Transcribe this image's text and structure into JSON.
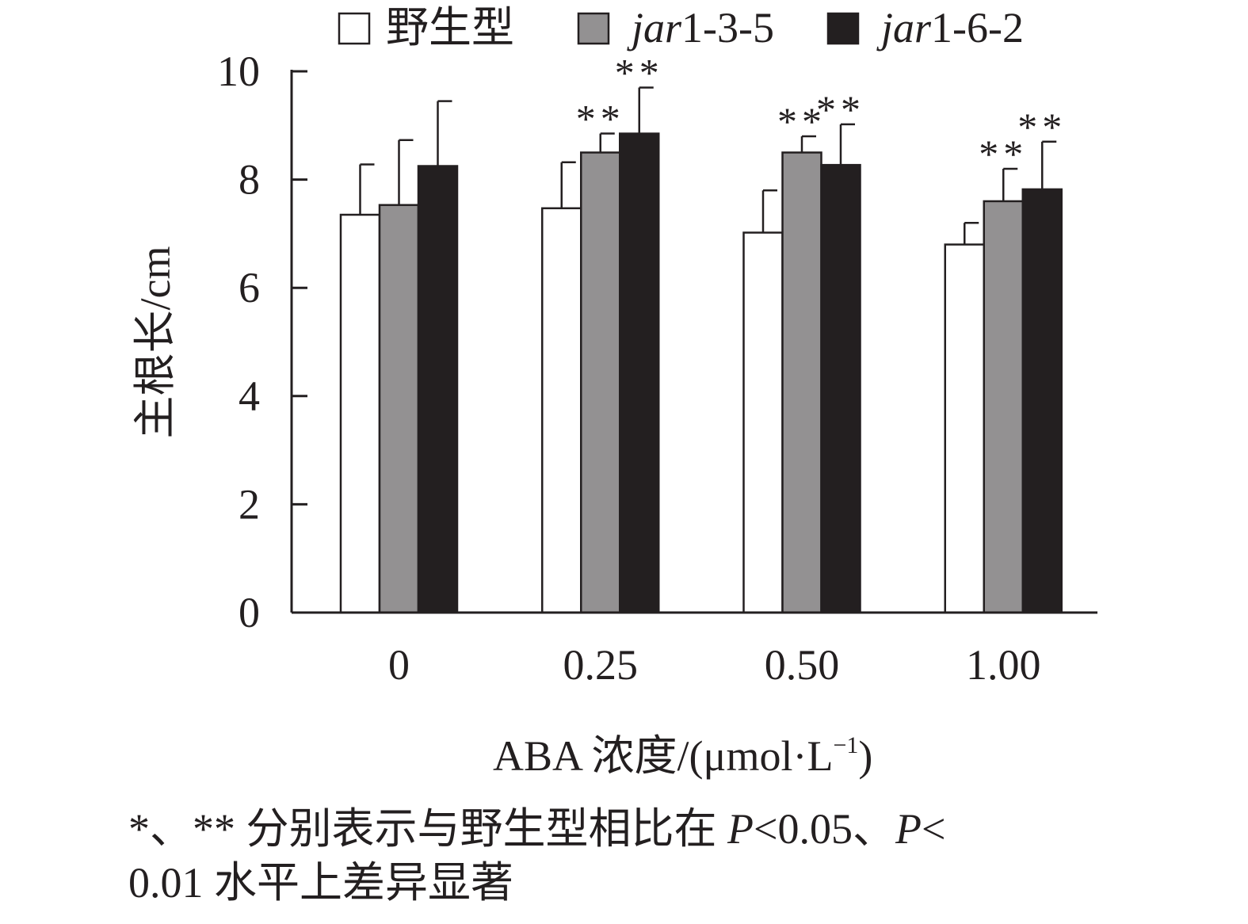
{
  "chart_data": {
    "type": "bar",
    "categories": [
      "0",
      "0.25",
      "0.50",
      "1.00"
    ],
    "series": [
      {
        "name": "野生型",
        "color": "#ffffff",
        "values": [
          7.35,
          7.47,
          7.02,
          6.8
        ],
        "errors": [
          0.93,
          0.85,
          0.78,
          0.4
        ],
        "significance": [
          "",
          "",
          "",
          ""
        ]
      },
      {
        "name_italic": "jar",
        "name_rest": "1-3-5",
        "color": "#939192",
        "values": [
          7.53,
          8.5,
          8.5,
          7.6
        ],
        "errors": [
          1.2,
          0.35,
          0.3,
          0.6
        ],
        "significance": [
          "",
          "**",
          "**",
          "**"
        ]
      },
      {
        "name_italic": "jar",
        "name_rest": "1-6-2",
        "color": "#231f20",
        "values": [
          8.25,
          8.85,
          8.27,
          7.82
        ],
        "errors": [
          1.2,
          0.85,
          0.75,
          0.88
        ],
        "significance": [
          "",
          "**",
          "**",
          "**"
        ]
      }
    ],
    "ylabel": "主根长/cm",
    "xlabel": "ABA 浓度/(μmol·L⁻¹)",
    "xlabel_main": "ABA 浓度/(μmol",
    "xlabel_unit": "·L",
    "xlabel_sup": "−1",
    "xlabel_close": ")",
    "ylim": [
      0,
      10
    ],
    "yticks": [
      0,
      2,
      4,
      6,
      8,
      10
    ],
    "grid": false,
    "legend_position": "top"
  },
  "footnote": {
    "line1_a": "*、** 分别表示与野生型相比在 ",
    "p1": "P",
    "line1_b": "<0.05、",
    "p2": "P",
    "line1_c": "<",
    "line2": "0.01 水平上差异显著"
  }
}
